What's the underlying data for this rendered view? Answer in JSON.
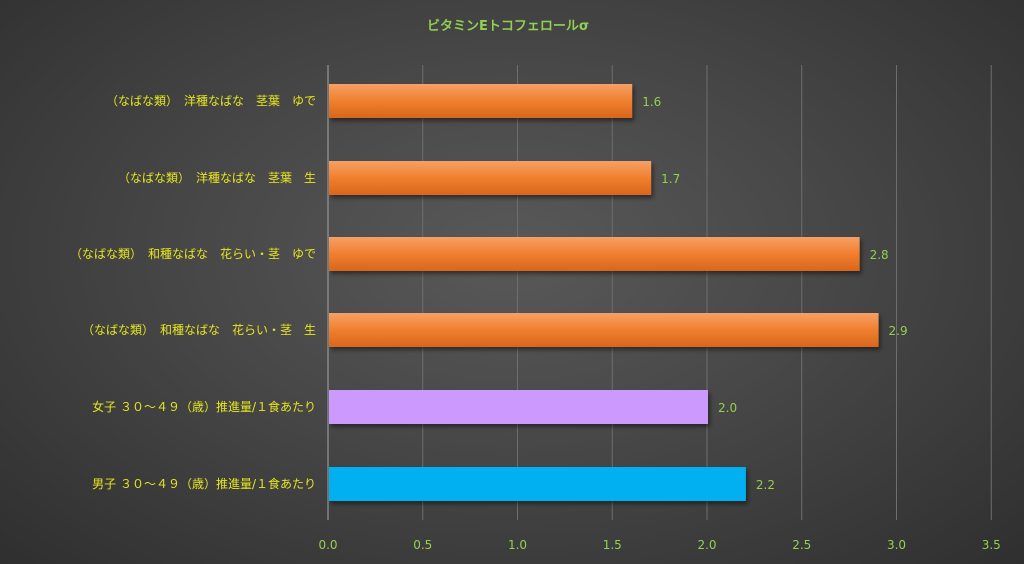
{
  "chart_data": {
    "type": "bar",
    "orientation": "horizontal",
    "title": "ビタミンEトコフェロールσ",
    "categories": [
      "（なばな類）　洋種なばな　茎葉　ゆで",
      "（なばな類）　洋種なばな　茎葉　生",
      "（なばな類）　和種なばな　花らい・茎　ゆで",
      "（なばな類）　和種なばな　花らい・茎　生",
      "女子 ３０～４９（歳）推進量/１食あたり",
      "男子 ３０～４９（歳）推進量/１食あたり"
    ],
    "values": [
      1.6,
      1.7,
      2.8,
      2.9,
      2.0,
      2.2
    ],
    "data_labels": [
      "1.6",
      "1.7",
      "2.8",
      "2.9",
      "2.0",
      "2.2"
    ],
    "bar_colors": [
      "#f07f2e",
      "#f07f2e",
      "#f07f2e",
      "#f07f2e",
      "#cc99ff",
      "#00b0f0"
    ],
    "xlim": [
      0,
      3.5
    ],
    "xticks": [
      "0.0",
      "0.5",
      "1.0",
      "1.5",
      "2.0",
      "2.5",
      "3.0",
      "3.5"
    ],
    "xlabel": "",
    "ylabel": "",
    "grid": true,
    "legend": "none"
  }
}
